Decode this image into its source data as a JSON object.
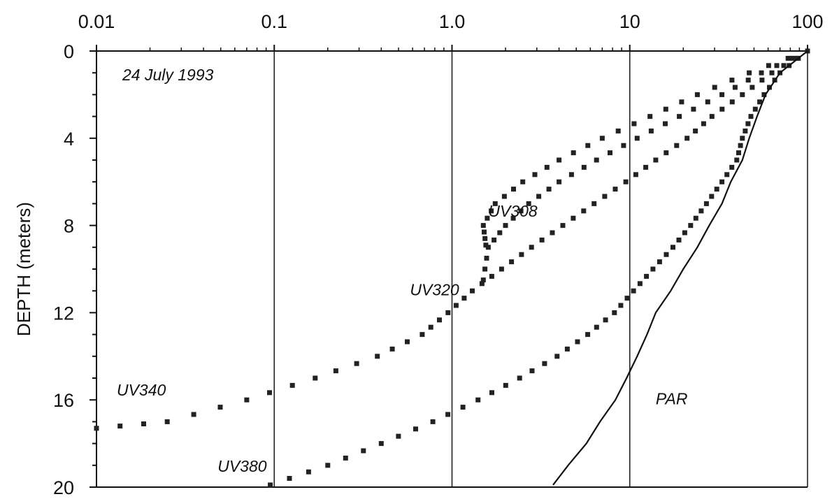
{
  "chart_data": {
    "type": "scatter",
    "title": "",
    "annotation": "24 July 1993",
    "xlabel": "",
    "ylabel": "DEPTH (meters)",
    "xscale": "log",
    "xlim": [
      0.01,
      100
    ],
    "ylim": [
      0,
      20
    ],
    "yinverted": true,
    "x_ticks": [
      {
        "value": 0.01,
        "label": "0.01"
      },
      {
        "value": 0.1,
        "label": "0.1"
      },
      {
        "value": 1,
        "label": "1.0"
      },
      {
        "value": 10,
        "label": "10"
      },
      {
        "value": 100,
        "label": "100"
      }
    ],
    "y_ticks": [
      {
        "value": 0,
        "label": "0"
      },
      {
        "value": 4,
        "label": "4"
      },
      {
        "value": 8,
        "label": "8"
      },
      {
        "value": 12,
        "label": "12"
      },
      {
        "value": 16,
        "label": "16"
      },
      {
        "value": 20,
        "label": "20"
      }
    ],
    "grid": "vertical lines at decades",
    "series": [
      {
        "name": "UV308",
        "style": "markers",
        "label_pos": [
          1.6,
          7.6
        ],
        "points": [
          [
            100,
            0
          ],
          [
            47,
            1
          ],
          [
            24,
            2
          ],
          [
            13,
            3
          ],
          [
            7.0,
            4
          ],
          [
            4.0,
            5
          ],
          [
            2.5,
            6
          ],
          [
            1.75,
            7
          ],
          [
            1.5,
            8
          ],
          [
            1.55,
            8.9
          ]
        ]
      },
      {
        "name": "UV320",
        "style": "markers",
        "label_pos": [
          0.58,
          11.2
        ],
        "points": [
          [
            100,
            0
          ],
          [
            55,
            1
          ],
          [
            33,
            2
          ],
          [
            19,
            3
          ],
          [
            11,
            4
          ],
          [
            6.5,
            5
          ],
          [
            4.0,
            6
          ],
          [
            2.7,
            7
          ],
          [
            2.0,
            8
          ],
          [
            1.6,
            9
          ],
          [
            1.5,
            10.5
          ]
        ]
      },
      {
        "name": "UV340",
        "style": "markers",
        "label_pos": [
          0.013,
          15.8
        ],
        "points": [
          [
            100,
            0
          ],
          [
            63,
            1
          ],
          [
            43,
            2
          ],
          [
            29,
            3
          ],
          [
            21,
            4
          ],
          [
            14,
            5
          ],
          [
            9.5,
            6
          ],
          [
            6.3,
            7
          ],
          [
            4.2,
            8
          ],
          [
            2.8,
            9
          ],
          [
            1.9,
            10
          ],
          [
            1.3,
            11
          ],
          [
            0.95,
            12
          ],
          [
            0.68,
            13
          ],
          [
            0.38,
            14
          ],
          [
            0.17,
            15
          ],
          [
            0.07,
            16
          ],
          [
            0.025,
            17
          ],
          [
            0.01,
            17.3
          ]
        ]
      },
      {
        "name": "UV380",
        "style": "markers",
        "label_pos": [
          0.048,
          19.3
        ],
        "points": [
          [
            100,
            0
          ],
          [
            70,
            1
          ],
          [
            57,
            2
          ],
          [
            48,
            3
          ],
          [
            43,
            4
          ],
          [
            40,
            5
          ],
          [
            33,
            6
          ],
          [
            27,
            7
          ],
          [
            22,
            8
          ],
          [
            17.5,
            9
          ],
          [
            13.5,
            10
          ],
          [
            10.5,
            11
          ],
          [
            8.2,
            12
          ],
          [
            5.8,
            13
          ],
          [
            3.9,
            14
          ],
          [
            2.4,
            15
          ],
          [
            1.4,
            16
          ],
          [
            0.78,
            17
          ],
          [
            0.4,
            18
          ],
          [
            0.2,
            19
          ],
          [
            0.095,
            19.9
          ]
        ]
      },
      {
        "name": "PAR",
        "style": "line",
        "label_pos": [
          14,
          16.2
        ],
        "points": [
          [
            100,
            0
          ],
          [
            70,
            1
          ],
          [
            58,
            2
          ],
          [
            52,
            3
          ],
          [
            47,
            4
          ],
          [
            43,
            5
          ],
          [
            37,
            6
          ],
          [
            33,
            7
          ],
          [
            28,
            8
          ],
          [
            24,
            9
          ],
          [
            20,
            10
          ],
          [
            17,
            11
          ],
          [
            14,
            12
          ],
          [
            12.5,
            13
          ],
          [
            11,
            14
          ],
          [
            9.6,
            15
          ],
          [
            8.3,
            16
          ],
          [
            6.8,
            17
          ],
          [
            5.7,
            18
          ],
          [
            4.5,
            19
          ],
          [
            3.7,
            19.9
          ]
        ]
      }
    ]
  }
}
